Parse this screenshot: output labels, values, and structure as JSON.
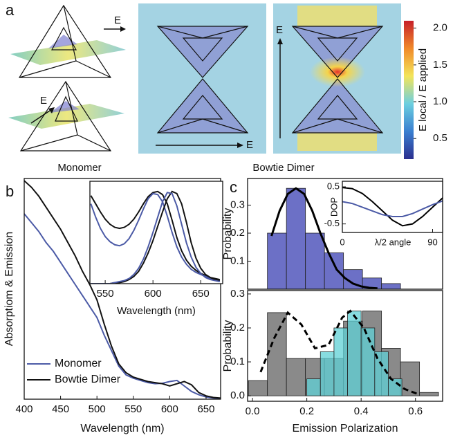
{
  "panel_labels": [
    "a",
    "b",
    "c"
  ],
  "panel_a": {
    "captions": [
      "Monomer",
      "Bowtie Dimer"
    ],
    "field_labels": [
      "E",
      "E",
      "E",
      "E"
    ]
  },
  "chart_data": [
    {
      "type": "colorbar",
      "label": "E local / E applied",
      "ylim": [
        0.22,
        2.1
      ],
      "yticks": [
        {
          "value": 2,
          "label": "2.0"
        },
        1.5,
        {
          "value": 1,
          "label": "1.0"
        },
        0.5
      ],
      "colors": [
        "#2b2f8f",
        "#3a7fd0",
        "#6ccfe0",
        "#f3e55a",
        "#f08a2a",
        "#c6202a"
      ]
    },
    {
      "type": "line",
      "xlabel": "Wavelength (nm)",
      "ylabel": "Absorptiom & Emission",
      "xlim": [
        400,
        670
      ],
      "xticks": [
        400,
        450,
        500,
        550,
        600,
        650
      ],
      "ylim": [
        0,
        1
      ],
      "legend": "lower left",
      "x": [
        400,
        410,
        420,
        430,
        440,
        450,
        460,
        470,
        480,
        490,
        500,
        510,
        520,
        530,
        540,
        550,
        560,
        570,
        580,
        590,
        600,
        610,
        620,
        630,
        640,
        650,
        660,
        670
      ],
      "series": [
        {
          "name": "Monomer",
          "color": "#4b5aa6",
          "values": [
            0.84,
            0.8,
            0.76,
            0.71,
            0.67,
            0.62,
            0.57,
            0.52,
            0.47,
            0.42,
            0.37,
            0.29,
            0.22,
            0.15,
            0.11,
            0.095,
            0.085,
            0.075,
            0.07,
            0.072,
            0.08,
            0.085,
            0.06,
            0.035,
            0.02,
            0.01,
            0.005,
            0.003
          ]
        },
        {
          "name": "Bowtie Dimer",
          "color": "#111111",
          "values": [
            0.99,
            0.96,
            0.92,
            0.87,
            0.82,
            0.77,
            0.71,
            0.65,
            0.58,
            0.52,
            0.45,
            0.34,
            0.24,
            0.16,
            0.12,
            0.1,
            0.09,
            0.08,
            0.075,
            0.07,
            0.06,
            0.07,
            0.08,
            0.065,
            0.03,
            0.015,
            0.008,
            0.005
          ]
        }
      ]
    },
    {
      "type": "line",
      "xlabel": "Wavelength (nm)",
      "xlim": [
        534,
        673
      ],
      "xticks": [
        550,
        600,
        650
      ],
      "ylim": [
        0,
        1
      ],
      "x": [
        535,
        540,
        545,
        550,
        555,
        560,
        565,
        570,
        575,
        580,
        585,
        590,
        595,
        600,
        605,
        610,
        615,
        620,
        625,
        630,
        635,
        640,
        645,
        650,
        655,
        660,
        665,
        670
      ],
      "series": [
        {
          "color": "#111111",
          "values": [
            0.86,
            0.78,
            0.7,
            0.63,
            0.58,
            0.55,
            0.54,
            0.55,
            0.58,
            0.63,
            0.7,
            0.78,
            0.85,
            0.89,
            0.9,
            0.87,
            0.78,
            0.62,
            0.45,
            0.32,
            0.23,
            0.17,
            0.13,
            0.1,
            0.08,
            0.06,
            0.05,
            0.04
          ]
        },
        {
          "color": "#4b5aa6",
          "values": [
            0.78,
            0.65,
            0.54,
            0.46,
            0.41,
            0.38,
            0.37,
            0.39,
            0.44,
            0.52,
            0.62,
            0.73,
            0.83,
            0.88,
            0.87,
            0.8,
            0.66,
            0.5,
            0.36,
            0.26,
            0.19,
            0.14,
            0.11,
            0.09,
            0.07,
            0.05,
            0.04,
            0.03
          ]
        },
        {
          "color": "#111111",
          "values": [
            0,
            0,
            0,
            0,
            0,
            0.01,
            0.01,
            0.02,
            0.04,
            0.07,
            0.12,
            0.2,
            0.3,
            0.42,
            0.56,
            0.7,
            0.83,
            0.9,
            0.88,
            0.78,
            0.6,
            0.4,
            0.25,
            0.15,
            0.09,
            0.06,
            0.04,
            0.03
          ]
        },
        {
          "color": "#4b5aa6",
          "values": [
            0,
            0,
            0,
            0,
            0,
            0.01,
            0.02,
            0.03,
            0.05,
            0.09,
            0.15,
            0.24,
            0.36,
            0.5,
            0.65,
            0.8,
            0.89,
            0.88,
            0.76,
            0.58,
            0.4,
            0.26,
            0.16,
            0.1,
            0.06,
            0.04,
            0.03,
            0.02
          ]
        }
      ]
    },
    {
      "type": "histogram",
      "ylabel": "Probability",
      "xlim": [
        -0.018,
        0.7
      ],
      "ylim": [
        0,
        0.395
      ],
      "yticks": [
        0.1,
        0.2,
        0.3
      ],
      "series": [
        {
          "color": "#6c70c6",
          "bins": [
            0.055,
            0.125,
            0.195,
            0.265,
            0.335,
            0.405,
            0.475,
            0.545
          ],
          "values": [
            0.2,
            0.36,
            0.2,
            0.13,
            0.07,
            0.04,
            0.02
          ]
        }
      ],
      "curve": {
        "color": "#000000",
        "x": [
          0.07,
          0.1,
          0.13,
          0.16,
          0.19,
          0.22,
          0.25,
          0.28,
          0.31,
          0.34,
          0.37,
          0.4,
          0.43,
          0.46
        ],
        "values": [
          0.19,
          0.28,
          0.34,
          0.36,
          0.34,
          0.28,
          0.2,
          0.13,
          0.07,
          0.04,
          0.02,
          0.01,
          0.005,
          0.003
        ]
      }
    },
    {
      "type": "line",
      "xlabel": "λ/2 angle",
      "ylabel": "DOP",
      "xlim": [
        0,
        100
      ],
      "xticks": [
        0,
        90
      ],
      "ylim": [
        -0.73,
        0.65
      ],
      "yticks": [
        0.5,
        -0.5
      ],
      "x": [
        0,
        10,
        20,
        30,
        40,
        50,
        60,
        70,
        80,
        90,
        100
      ],
      "series": [
        {
          "color": "#000000",
          "values": [
            0.48,
            0.45,
            0.32,
            0.1,
            -0.15,
            -0.4,
            -0.55,
            -0.5,
            -0.3,
            -0.05,
            0.2
          ]
        },
        {
          "color": "#4b5aa6",
          "values": [
            0.1,
            0.05,
            -0.05,
            -0.15,
            -0.25,
            -0.3,
            -0.3,
            -0.22,
            -0.1,
            0.02,
            0.12
          ]
        }
      ]
    },
    {
      "type": "histogram",
      "xlabel": "Emission Polarization",
      "ylabel": "Probability",
      "xlim": [
        -0.018,
        0.7
      ],
      "xticks": [
        {
          "value": 0,
          "label": "0.0"
        },
        0.2,
        0.4,
        0.6
      ],
      "ylim": [
        -0.016,
        0.31
      ],
      "yticks": [
        {
          "value": 0,
          "label": "0.0"
        },
        0.1,
        0.2,
        0.3
      ],
      "series": [
        {
          "color": "#8a8a8a",
          "bins": [
            -0.015,
            0.055,
            0.125,
            0.195,
            0.265,
            0.335,
            0.405,
            0.475,
            0.545,
            0.615,
            0.685
          ],
          "values": [
            0.045,
            0.245,
            0.11,
            0.11,
            0.11,
            0.22,
            0.25,
            0.14,
            0.1,
            0.01
          ]
        },
        {
          "color": "#5fd0d6",
          "bins": [
            0.2,
            0.25,
            0.3,
            0.35,
            0.4,
            0.45,
            0.5,
            0.55
          ],
          "values": [
            0.05,
            0.13,
            0.2,
            0.25,
            0.2,
            0.13,
            0.05
          ]
        }
      ],
      "curve": {
        "color": "#000000",
        "dashed": true,
        "x": [
          0.03,
          0.08,
          0.13,
          0.18,
          0.23,
          0.28,
          0.33,
          0.36,
          0.41,
          0.46,
          0.51,
          0.56,
          0.61
        ],
        "values": [
          0.07,
          0.17,
          0.245,
          0.21,
          0.14,
          0.15,
          0.23,
          0.25,
          0.2,
          0.11,
          0.05,
          0.02,
          0.005
        ]
      }
    }
  ]
}
